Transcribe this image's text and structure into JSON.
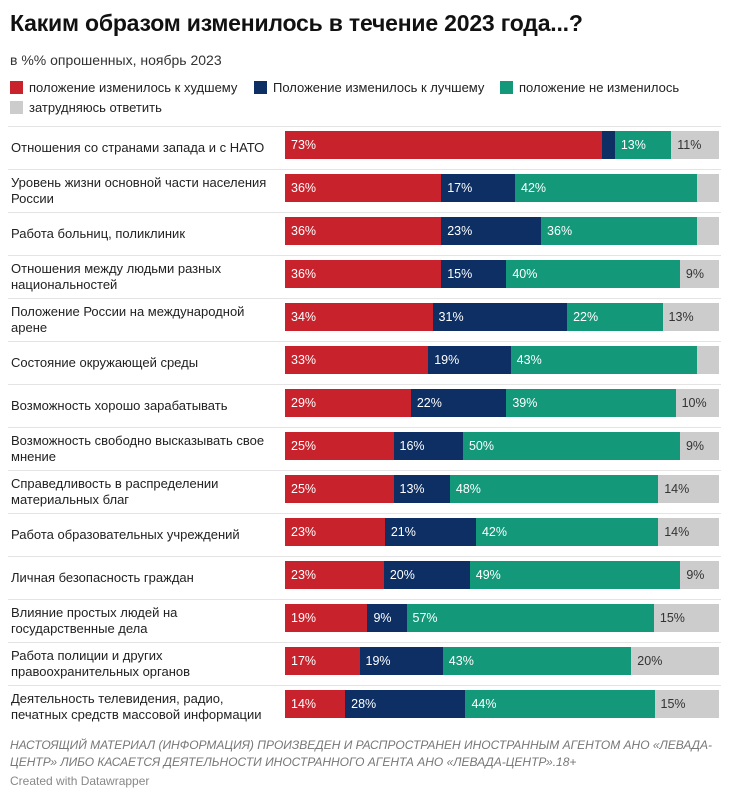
{
  "title": "Каким образом изменилось в течение 2023 года...?",
  "subtitle": "в %% опрошенных, ноябрь 2023",
  "footer_note": "НАСТОЯЩИЙ МАТЕРИАЛ (ИНФОРМАЦИЯ) ПРОИЗВЕДЕН И РАСПРОСТРАНЕН ИНОСТРАННЫМ АГЕНТОМ АНО «ЛЕВАДА-ЦЕНТР» ЛИБО КАСАЕТСЯ ДЕЯТЕЛЬНОСТИ ИНОСТРАННОГО АГЕНТА АНО «ЛЕВАДА-ЦЕНТР».18+",
  "credit": "Created with Datawrapper",
  "chart_data": {
    "type": "bar",
    "orientation": "horizontal",
    "stacked": true,
    "unit": "%",
    "legend_position": "top",
    "categories": [
      "Отношения со странами запада и с НАТО",
      "Уровень жизни основной части населения России",
      "Работа больниц, поликлиник",
      "Отношения между людьми разных национальностей",
      "Положение России на международной арене",
      "Состояние окружающей среды",
      "Возможность хорошо зарабатывать",
      "Возможность свободно высказывать свое мнение",
      "Справедливость в распределении материальных благ",
      "Работа образовательных учреждений",
      "Личная безопасность граждан",
      "Влияние простых людей на государственные дела",
      "Работа полиции и других правоохранительных органов",
      "Деятельность телевидения, радио, печатных средств массовой информации"
    ],
    "series": [
      {
        "name": "положение изменилось к худшему",
        "color": "#c8232c",
        "label_color": "#ffffff",
        "values": [
          73,
          36,
          36,
          36,
          34,
          33,
          29,
          25,
          25,
          23,
          23,
          19,
          17,
          14
        ],
        "labels": [
          "73%",
          "36%",
          "36%",
          "36%",
          "34%",
          "33%",
          "29%",
          "25%",
          "25%",
          "23%",
          "23%",
          "19%",
          "17%",
          "14%"
        ]
      },
      {
        "name": "Положение изменилось к лучшему",
        "color": "#0d2f63",
        "label_color": "#ffffff",
        "values": [
          3,
          17,
          23,
          15,
          31,
          19,
          22,
          16,
          13,
          21,
          20,
          9,
          19,
          28
        ],
        "labels": [
          "",
          "17%",
          "23%",
          "15%",
          "31%",
          "19%",
          "22%",
          "16%",
          "13%",
          "21%",
          "20%",
          "9%",
          "19%",
          "28%"
        ]
      },
      {
        "name": "положение не изменилось",
        "color": "#13987a",
        "label_color": "#ffffff",
        "values": [
          13,
          42,
          36,
          40,
          22,
          43,
          39,
          50,
          48,
          42,
          49,
          57,
          43,
          44
        ],
        "labels": [
          "13%",
          "42%",
          "36%",
          "40%",
          "22%",
          "43%",
          "39%",
          "50%",
          "48%",
          "42%",
          "49%",
          "57%",
          "43%",
          "44%"
        ]
      },
      {
        "name": "затрудняюсь ответить",
        "color": "#cccccc",
        "label_color": "#333333",
        "values": [
          11,
          5,
          5,
          9,
          13,
          5,
          10,
          9,
          14,
          14,
          9,
          15,
          20,
          15
        ],
        "labels": [
          "11%",
          "",
          "",
          "9%",
          "13%",
          "",
          "10%",
          "9%",
          "14%",
          "14%",
          "9%",
          "15%",
          "20%",
          "15%"
        ]
      }
    ]
  }
}
